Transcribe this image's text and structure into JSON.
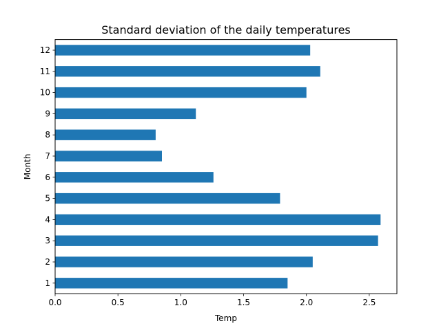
{
  "chart_data": {
    "type": "bar",
    "orientation": "horizontal",
    "title": "Standard deviation of the daily temperatures",
    "xlabel": "Temp",
    "ylabel": "Month",
    "categories": [
      "1",
      "2",
      "3",
      "4",
      "5",
      "6",
      "7",
      "8",
      "9",
      "10",
      "11",
      "12"
    ],
    "values": [
      1.85,
      2.05,
      2.57,
      2.59,
      1.79,
      1.26,
      0.85,
      0.8,
      1.12,
      2.0,
      2.11,
      2.03
    ],
    "xlim": [
      0,
      2.72
    ],
    "xticks": [
      "0.0",
      "0.5",
      "1.0",
      "1.5",
      "2.0",
      "2.5"
    ],
    "bar_color": "#1f77b4",
    "grid": false,
    "legend": "none"
  }
}
